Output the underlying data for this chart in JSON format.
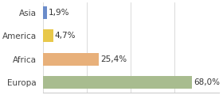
{
  "categories": [
    "Asia",
    "America",
    "Africa",
    "Europa"
  ],
  "values": [
    1.9,
    4.7,
    25.4,
    68.0
  ],
  "labels": [
    "1,9%",
    "4,7%",
    "25,4%",
    "68,0%"
  ],
  "bar_colors": [
    "#6b8cca",
    "#e8c84a",
    "#e8b07a",
    "#a8bc8f"
  ],
  "background_color": "#ffffff",
  "xlim": [
    0,
    80
  ],
  "label_fontsize": 7.5,
  "tick_fontsize": 7.5
}
